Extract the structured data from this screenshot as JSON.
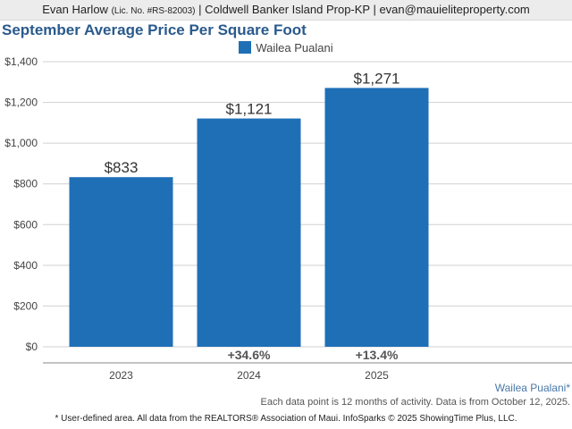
{
  "header": {
    "agent_name": "Evan Harlow",
    "license": "(Lic. No. #RS-82003)",
    "company_email": "| Coldwell Banker Island Prop-KP | evan@mauieliteproperty.com"
  },
  "colors": {
    "bar": "#1f6fb7",
    "title": "#2a5a8c",
    "grid": "#d0d0d0",
    "axis_text": "#444444"
  },
  "area_label": "Wailea Pualani*",
  "note": "Each data point is 12 months of activity. Data is from October 12, 2025.",
  "footer": "* User-defined area. All data from the REALTORS® Association of Maui. InfoSparks © 2025 ShowingTime Plus, LLC.",
  "chart_data": {
    "type": "bar",
    "title": "September Average Price Per Square Foot",
    "categories": [
      "2023",
      "2024",
      "2025"
    ],
    "series": [
      {
        "name": "Wailea Pualani",
        "values": [
          833,
          1121,
          1271
        ],
        "value_labels": [
          "$833",
          "$1,121",
          "$1,271"
        ],
        "change_labels": [
          "",
          "+34.6%",
          "+13.4%"
        ]
      }
    ],
    "ylim": [
      0,
      1400
    ],
    "yticks": [
      0,
      200,
      400,
      600,
      800,
      1000,
      1200,
      1400
    ],
    "ytick_labels": [
      "$0",
      "$200",
      "$400",
      "$600",
      "$800",
      "$1,000",
      "$1,200",
      "$1,400"
    ],
    "grid": true,
    "legend_position": "top-center"
  }
}
